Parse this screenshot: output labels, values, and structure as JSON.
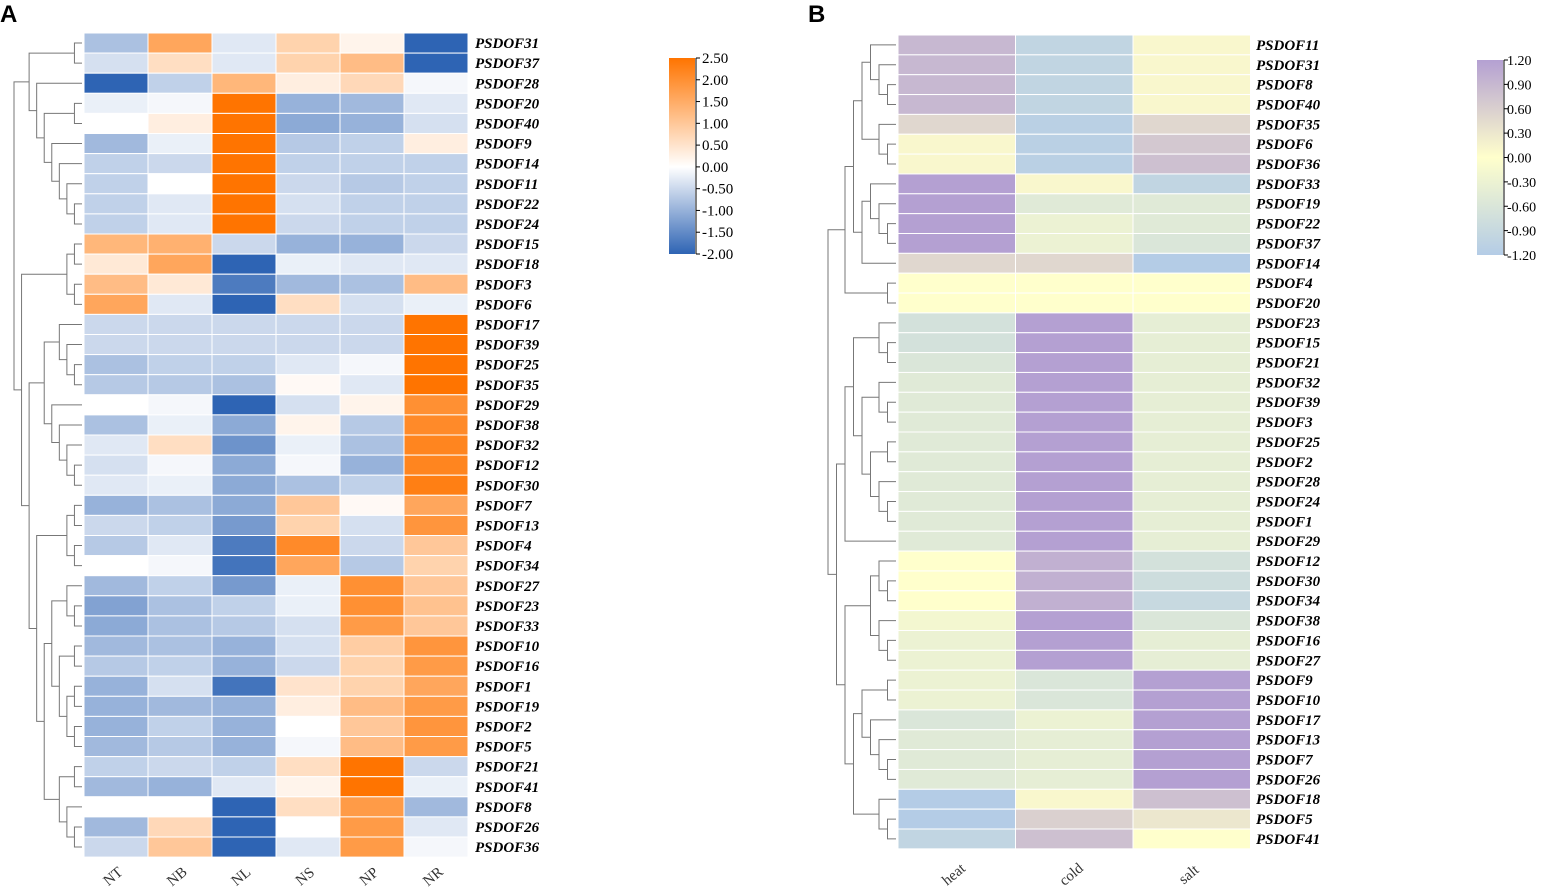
{
  "chart_data": [
    {
      "panel": "A",
      "type": "heatmap",
      "columns": [
        "NT",
        "NB",
        "NL",
        "NS",
        "NP",
        "NR"
      ],
      "rows": [
        "PSDOF31",
        "PSDOF37",
        "PSDOF28",
        "PSDOF20",
        "PSDOF40",
        "PSDOF9",
        "PSDOF14",
        "PSDOF11",
        "PSDOF22",
        "PSDOF24",
        "PSDOF15",
        "PSDOF18",
        "PSDOF3",
        "PSDOF6",
        "PSDOF17",
        "PSDOF39",
        "PSDOF25",
        "PSDOF35",
        "PSDOF29",
        "PSDOF38",
        "PSDOF32",
        "PSDOF12",
        "PSDOF30",
        "PSDOF7",
        "PSDOF13",
        "PSDOF4",
        "PSDOF34",
        "PSDOF27",
        "PSDOF23",
        "PSDOF33",
        "PSDOF10",
        "PSDOF16",
        "PSDOF1",
        "PSDOF19",
        "PSDOF2",
        "PSDOF5",
        "PSDOF21",
        "PSDOF41",
        "PSDOF8",
        "PSDOF26",
        "PSDOF36"
      ],
      "values": [
        [
          -0.8,
          1.6,
          -0.3,
          0.8,
          0.2,
          -2.0
        ],
        [
          -0.4,
          0.6,
          -0.3,
          0.8,
          1.2,
          -2.0
        ],
        [
          -2.0,
          -0.6,
          1.3,
          0.3,
          0.7,
          -0.1
        ],
        [
          -0.2,
          -0.1,
          2.5,
          -1.0,
          -0.9,
          -0.3
        ],
        [
          0.0,
          0.3,
          2.5,
          -1.1,
          -1.0,
          -0.4
        ],
        [
          -0.9,
          -0.2,
          2.5,
          -0.7,
          -0.6,
          0.3
        ],
        [
          -0.6,
          -0.5,
          2.5,
          -0.6,
          -0.6,
          -0.6
        ],
        [
          -0.6,
          0.0,
          2.5,
          -0.5,
          -0.7,
          -0.6
        ],
        [
          -0.6,
          -0.3,
          2.5,
          -0.4,
          -0.6,
          -0.6
        ],
        [
          -0.6,
          -0.3,
          2.5,
          -0.5,
          -0.6,
          -0.6
        ],
        [
          1.3,
          1.4,
          -0.5,
          -1.0,
          -1.0,
          -0.5
        ],
        [
          0.4,
          1.6,
          -2.0,
          -0.2,
          -0.3,
          -0.3
        ],
        [
          1.2,
          0.4,
          -1.7,
          -0.9,
          -0.8,
          1.2
        ],
        [
          1.6,
          -0.3,
          -2.0,
          0.6,
          -0.4,
          -0.2
        ],
        [
          -0.5,
          -0.5,
          -0.5,
          -0.5,
          -0.5,
          2.5
        ],
        [
          -0.5,
          -0.5,
          -0.5,
          -0.5,
          -0.5,
          2.5
        ],
        [
          -0.8,
          -0.6,
          -0.6,
          -0.3,
          -0.1,
          2.5
        ],
        [
          -0.7,
          -0.7,
          -0.8,
          0.1,
          -0.3,
          2.5
        ],
        [
          0.0,
          -0.1,
          -2.0,
          -0.4,
          0.2,
          2.0
        ],
        [
          -0.8,
          -0.2,
          -1.1,
          0.2,
          -0.7,
          2.1
        ],
        [
          -0.3,
          0.6,
          -1.4,
          -0.2,
          -0.8,
          2.2
        ],
        [
          -0.4,
          -0.1,
          -1.1,
          -0.1,
          -1.0,
          2.2
        ],
        [
          -0.3,
          -0.2,
          -1.1,
          -0.8,
          -0.6,
          2.3
        ],
        [
          -1.0,
          -0.8,
          -1.1,
          1.0,
          0.1,
          1.6
        ],
        [
          -0.5,
          -0.6,
          -1.3,
          0.8,
          -0.4,
          1.9
        ],
        [
          -0.7,
          -0.3,
          -1.7,
          2.1,
          -0.5,
          1.0
        ],
        [
          0.0,
          -0.1,
          -1.8,
          1.6,
          -0.7,
          0.8
        ],
        [
          -0.9,
          -0.6,
          -1.3,
          -0.2,
          2.0,
          1.0
        ],
        [
          -1.2,
          -0.8,
          -0.6,
          -0.2,
          2.0,
          1.1
        ],
        [
          -1.1,
          -0.8,
          -0.7,
          -0.4,
          1.8,
          1.0
        ],
        [
          -0.9,
          -0.8,
          -1.0,
          -0.4,
          0.9,
          1.9
        ],
        [
          -0.7,
          -0.6,
          -1.0,
          -0.5,
          0.8,
          1.8
        ],
        [
          -1.0,
          -0.4,
          -1.8,
          0.5,
          0.8,
          1.6
        ],
        [
          -1.0,
          -0.9,
          -1.0,
          0.3,
          1.2,
          1.8
        ],
        [
          -1.0,
          -0.6,
          -1.0,
          0.0,
          1.0,
          1.9
        ],
        [
          -0.9,
          -0.7,
          -1.0,
          -0.1,
          1.2,
          1.8
        ],
        [
          -0.6,
          -0.5,
          -0.6,
          0.6,
          2.5,
          -0.5
        ],
        [
          -0.9,
          -1.0,
          -0.3,
          0.2,
          2.5,
          -0.2
        ],
        [
          0.0,
          0.0,
          -2.0,
          0.6,
          1.8,
          -0.9
        ],
        [
          -0.9,
          0.7,
          -2.0,
          0.0,
          1.8,
          -0.3
        ],
        [
          -0.5,
          1.0,
          -2.0,
          -0.3,
          1.8,
          -0.1
        ]
      ],
      "colorbar": {
        "min": -2.0,
        "max": 2.5,
        "ticks": [
          "2.50",
          "2.00",
          "1.50",
          "1.00",
          "0.50",
          "0.00",
          "-0.50",
          "-1.00",
          "-1.50",
          "-2.00"
        ]
      },
      "colors": {
        "low": "#2e64b4",
        "mid": "#ffffff",
        "high": "#ff7400"
      }
    },
    {
      "panel": "B",
      "type": "heatmap",
      "columns": [
        "heat",
        "cold",
        "salt"
      ],
      "rows": [
        "PSDOF11",
        "PSDOF31",
        "PSDOF8",
        "PSDOF40",
        "PSDOF35",
        "PSDOF6",
        "PSDOF36",
        "PSDOF33",
        "PSDOF19",
        "PSDOF22",
        "PSDOF37",
        "PSDOF14",
        "PSDOF4",
        "PSDOF20",
        "PSDOF23",
        "PSDOF15",
        "PSDOF21",
        "PSDOF32",
        "PSDOF39",
        "PSDOF3",
        "PSDOF25",
        "PSDOF2",
        "PSDOF28",
        "PSDOF24",
        "PSDOF1",
        "PSDOF29",
        "PSDOF12",
        "PSDOF30",
        "PSDOF34",
        "PSDOF38",
        "PSDOF16",
        "PSDOF27",
        "PSDOF9",
        "PSDOF10",
        "PSDOF17",
        "PSDOF13",
        "PSDOF7",
        "PSDOF26",
        "PSDOF18",
        "PSDOF5",
        "PSDOF41"
      ],
      "values": [
        [
          0.9,
          -1.0,
          0.1
        ],
        [
          0.9,
          -1.0,
          0.1
        ],
        [
          0.9,
          -1.0,
          0.1
        ],
        [
          0.9,
          -1.0,
          0.1
        ],
        [
          0.5,
          -1.1,
          0.5
        ],
        [
          0.1,
          -1.1,
          0.7
        ],
        [
          0.1,
          -1.1,
          0.8
        ],
        [
          1.2,
          0.1,
          -1.0
        ],
        [
          1.2,
          -0.5,
          -0.5
        ],
        [
          1.2,
          -0.3,
          -0.5
        ],
        [
          1.2,
          -0.3,
          -0.6
        ],
        [
          0.5,
          0.5,
          -1.2
        ],
        [
          0.0,
          0.0,
          0.0
        ],
        [
          0.0,
          0.0,
          0.0
        ],
        [
          -0.7,
          1.2,
          -0.4
        ],
        [
          -0.7,
          1.2,
          -0.4
        ],
        [
          -0.6,
          1.2,
          -0.4
        ],
        [
          -0.5,
          1.2,
          -0.4
        ],
        [
          -0.5,
          1.2,
          -0.4
        ],
        [
          -0.5,
          1.2,
          -0.4
        ],
        [
          -0.5,
          1.2,
          -0.4
        ],
        [
          -0.5,
          1.2,
          -0.4
        ],
        [
          -0.5,
          1.2,
          -0.4
        ],
        [
          -0.5,
          1.2,
          -0.4
        ],
        [
          -0.5,
          1.2,
          -0.4
        ],
        [
          -0.5,
          1.2,
          -0.4
        ],
        [
          0.0,
          1.0,
          -0.7
        ],
        [
          0.0,
          1.0,
          -0.8
        ],
        [
          0.0,
          1.0,
          -0.9
        ],
        [
          -0.2,
          1.2,
          -0.6
        ],
        [
          -0.3,
          1.2,
          -0.4
        ],
        [
          -0.3,
          1.2,
          -0.4
        ],
        [
          -0.3,
          -0.6,
          1.2
        ],
        [
          -0.3,
          -0.6,
          1.2
        ],
        [
          -0.6,
          -0.3,
          1.2
        ],
        [
          -0.5,
          -0.4,
          1.2
        ],
        [
          -0.5,
          -0.4,
          1.2
        ],
        [
          -0.5,
          -0.4,
          1.2
        ],
        [
          -1.2,
          0.1,
          0.8
        ],
        [
          -1.2,
          0.6,
          0.3
        ],
        [
          -1.0,
          0.8,
          0.0
        ]
      ],
      "colorbar": {
        "min": -1.2,
        "max": 1.2,
        "ticks": [
          "1.20",
          "0.90",
          "0.60",
          "0.30",
          "0.00",
          "-0.30",
          "-0.60",
          "-0.90",
          "-1.20"
        ]
      },
      "colors": {
        "low": "#b4cce6",
        "mid": "#ffffcc",
        "high": "#b4a0d2"
      }
    }
  ],
  "panels": {
    "a_label": "A",
    "b_label": "B"
  }
}
